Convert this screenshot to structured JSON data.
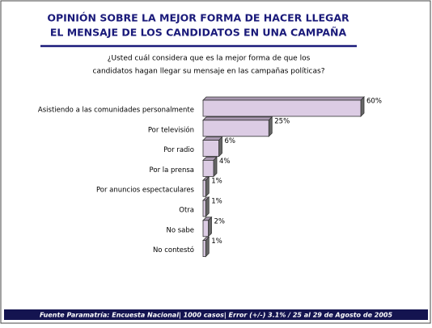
{
  "chart_data": {
    "type": "hbar3d",
    "title": [
      "OPINIÓN SOBRE LA MEJOR FORMA DE HACER LLEGAR",
      "EL MENSAJE DE LOS CANDIDATOS EN UNA CAMPAÑA"
    ],
    "subtitle": [
      "¿Usted cuál considera que es la mejor forma de que los",
      "candidatos hagan llegar su mensaje en las campañas políticas?"
    ],
    "categories": [
      "Asistiendo a las comunidades personalmente",
      "Por televisión",
      "Por radio",
      "Por la prensa",
      "Por anuncios espectaculares",
      "Otra",
      "No sabe",
      "No contestó"
    ],
    "values": [
      60,
      25,
      6,
      4,
      1,
      1,
      2,
      1
    ],
    "value_labels": [
      "60%",
      "25%",
      "6%",
      "4%",
      "1%",
      "1%",
      "2%",
      "1%"
    ],
    "color": "#dccce4",
    "footer": "Fuente Paramatría: Encuesta Nacional| 1000 casos| Error (+/-) 3.1% / 25 al 29 de Agosto de 2005"
  }
}
